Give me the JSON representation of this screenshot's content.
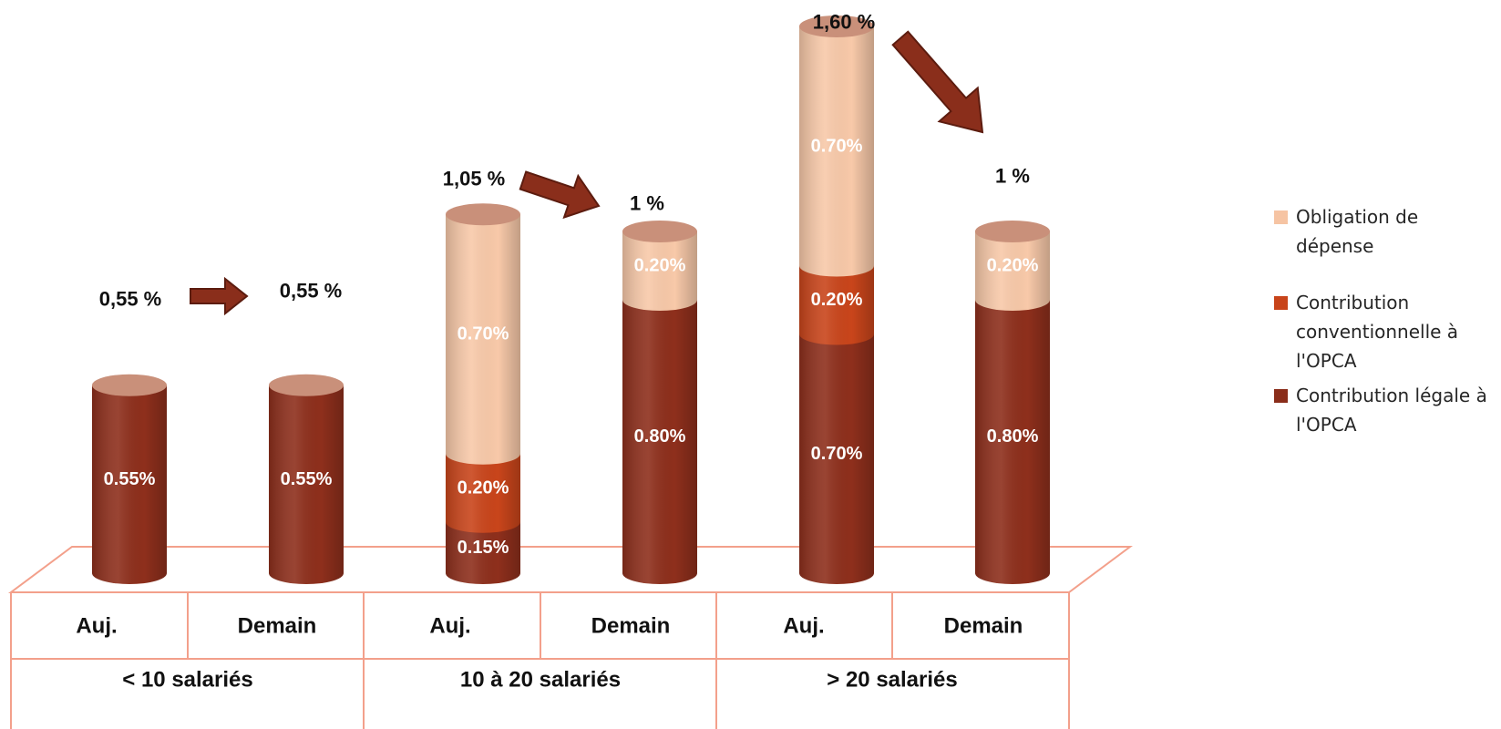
{
  "chart_data": {
    "type": "bar",
    "stacked": true,
    "style": "3d-cylinder",
    "title": "",
    "xlabel": "",
    "ylabel": "",
    "categories": [
      "Auj.",
      "Demain",
      "Auj.",
      "Demain",
      "Auj.",
      "Demain"
    ],
    "groups": [
      "< 10 salariés",
      "10 à 20 salariés",
      "> 20 salariés"
    ],
    "series": [
      {
        "name": "Contribution légale à l'OPCA",
        "color": "#8a2d1a",
        "values": [
          0.55,
          0.55,
          0.15,
          0.8,
          0.7,
          0.8
        ],
        "labels": [
          "0.55%",
          "0.55%",
          "0.15%",
          "0.80%",
          "0.70%",
          "0.80%"
        ]
      },
      {
        "name": "Contribution conventionnelle à l'OPCA",
        "color": "#c8441a",
        "values": [
          0,
          0,
          0.2,
          0,
          0.2,
          0
        ],
        "labels": [
          "",
          "",
          "0.20%",
          "",
          "0.20%",
          ""
        ]
      },
      {
        "name": "Obligation de dépense",
        "color": "#f6c4a3",
        "values": [
          0,
          0,
          0.7,
          0.2,
          0.7,
          0.2
        ],
        "labels": [
          "",
          "",
          "0.70%",
          "0.20%",
          "0.70%",
          "0.20%"
        ]
      }
    ],
    "totals": [
      "0,55 %",
      "0,55 %",
      "1,05 %",
      "1 %",
      "1,60 %",
      "1 %"
    ],
    "legend_position": "right",
    "grid": false
  }
}
